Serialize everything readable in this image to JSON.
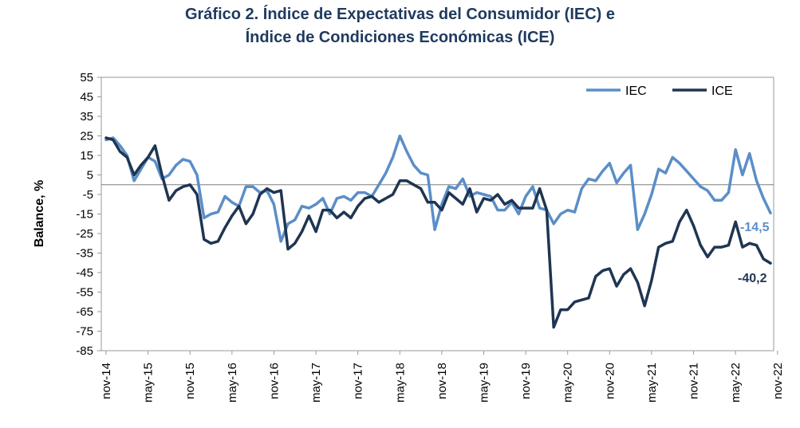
{
  "title": {
    "line1": "Gráfico 2. Índice de Expectativas del Consumidor (IEC) e",
    "line2": "Índice de Condiciones Económicas (ICE)"
  },
  "chart_data": {
    "type": "line",
    "title": "Gráfico 2. Índice de Expectativas del Consumidor (IEC) e Índice de Condiciones Económicas (ICE)",
    "xlabel": "",
    "ylabel": "Balance, %",
    "ylim": [
      -85,
      55
    ],
    "yticks": [
      55,
      45,
      35,
      25,
      15,
      5,
      -5,
      -15,
      -25,
      -35,
      -45,
      -55,
      -65,
      -75,
      -85
    ],
    "x_tick_labels": [
      "nov-14",
      "may-15",
      "nov-15",
      "may-16",
      "nov-16",
      "may-17",
      "nov-17",
      "may-18",
      "nov-18",
      "may-19",
      "nov-19",
      "may-20",
      "nov-20",
      "may-21",
      "nov-21",
      "may-22",
      "nov-22"
    ],
    "zero_line": 0,
    "legend_position": "top-right",
    "series": [
      {
        "name": "IEC",
        "color": "#5b8ec7",
        "end_label": "-14,5",
        "values": [
          23,
          24,
          20,
          15,
          2,
          8,
          14,
          12,
          3,
          5,
          10,
          13,
          12,
          5,
          -17,
          -15,
          -14,
          -6,
          -9,
          -11,
          -1,
          -1,
          -4,
          -3,
          -10,
          -29,
          -20,
          -18,
          -11,
          -12,
          -10,
          -7,
          -15,
          -7,
          -6,
          -8,
          -4,
          -4,
          -6,
          0,
          6,
          14,
          25,
          17,
          10,
          6,
          5,
          -23,
          -10,
          -1,
          -2,
          3,
          -6,
          -4,
          -5,
          -6,
          -13,
          -13,
          -9,
          -15,
          -6,
          -1,
          -12,
          -13,
          -20,
          -15,
          -13,
          -14,
          -2,
          3,
          2,
          7,
          11,
          1,
          6,
          10,
          -23,
          -15,
          -5,
          8,
          6,
          14,
          11,
          7,
          3,
          -1,
          -3,
          -8,
          -8,
          -4,
          18,
          5,
          16,
          2,
          -7,
          -14.5
        ]
      },
      {
        "name": "ICE",
        "color": "#1f3552",
        "end_label": "-40,2",
        "values": [
          24,
          23,
          17,
          14,
          5,
          10,
          14,
          20,
          5,
          -8,
          -3,
          -1,
          0,
          -5,
          -28,
          -30,
          -29,
          -22,
          -16,
          -11,
          -20,
          -15,
          -5,
          -2,
          -4,
          -3,
          -33,
          -30,
          -24,
          -16,
          -24,
          -13,
          -13,
          -17,
          -14,
          -17,
          -11,
          -7,
          -6,
          -9,
          -7,
          -5,
          2,
          2,
          0,
          -2,
          -9,
          -9,
          -13,
          -4,
          -7,
          -10,
          -2,
          -14,
          -7,
          -8,
          -5,
          -10,
          -8,
          -12,
          -12,
          -12,
          -2,
          -13,
          -73,
          -64,
          -64,
          -60,
          -59,
          -58,
          -47,
          -44,
          -43,
          -52,
          -46,
          -43,
          -50,
          -62,
          -49,
          -32,
          -30,
          -29,
          -19,
          -13,
          -21,
          -31,
          -37,
          -32,
          -32,
          -31,
          -19,
          -32,
          -30,
          -31,
          -38,
          -40.2
        ]
      }
    ]
  }
}
